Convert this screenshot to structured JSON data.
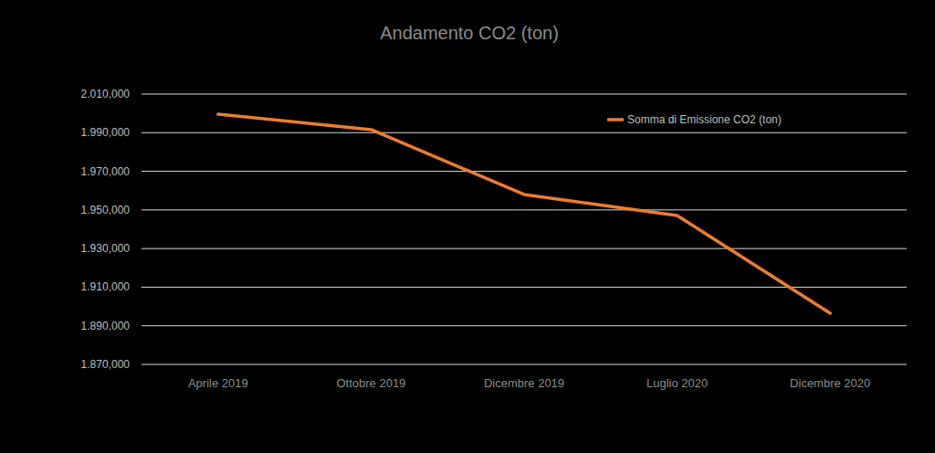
{
  "chart_data": {
    "type": "line",
    "title": "Andamento CO2 (ton)",
    "categories": [
      "Aprile 2019",
      "Ottobre 2019",
      "Dicembre 2019",
      "Luglio 2020",
      "Dicembre 2020"
    ],
    "series": [
      {
        "name": "Somma di Emissione CO2 (ton)",
        "color": "#ed7d31",
        "values": [
          1999600,
          1991600,
          1958000,
          1947100,
          1896500
        ]
      }
    ],
    "ylim": [
      1870000,
      2010000
    ],
    "yticks": [
      {
        "value": 1870000,
        "label": "1.870,000"
      },
      {
        "value": 1890000,
        "label": "1.890,000"
      },
      {
        "value": 1910000,
        "label": "1.910,000"
      },
      {
        "value": 1930000,
        "label": "1.930,000"
      },
      {
        "value": 1950000,
        "label": "1.950,000"
      },
      {
        "value": 1970000,
        "label": "1.970,000"
      },
      {
        "value": 1990000,
        "label": "1.990,000"
      },
      {
        "value": 2010000,
        "label": "2.010,000"
      }
    ],
    "grid": true,
    "legend": "top-right"
  }
}
